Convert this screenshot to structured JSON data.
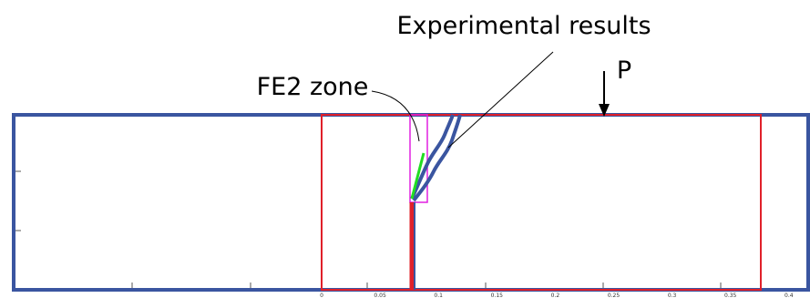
{
  "annotations": {
    "experimental": "Experimental results",
    "fe2": "FE2 zone",
    "load": "P"
  },
  "axis": {
    "tick_labels": [
      "0",
      "0.05",
      "0.1",
      "0.15",
      "0.2",
      "0.25",
      "0.3",
      "0.35",
      "0.4"
    ]
  }
}
